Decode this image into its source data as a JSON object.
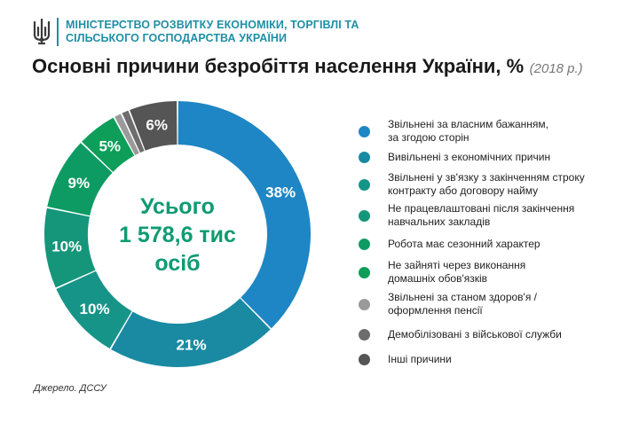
{
  "header": {
    "ministry_line1": "МІНІСТЕРСТВО РОЗВИТКУ ЕКОНОМІКИ, ТОРГІВЛІ ТА",
    "ministry_line2": "СІЛЬСЬКОГО ГОСПОДАРСТВА УКРАЇНИ",
    "emblem_icon": "trident-icon"
  },
  "chart_data": {
    "type": "pie",
    "title": "Основні причини безробіття населення України, %",
    "subtitle": "(2018 р.)",
    "center_text": [
      "Усього",
      "1 578,6 тис",
      "осіб"
    ],
    "value_suffix": "%",
    "legend_placement": "right",
    "slices": [
      {
        "label_lines": [
          "Звільнені за власним бажанням,",
          "за згодою сторін"
        ],
        "value": 38,
        "color": "#1e86c4",
        "shown": true
      },
      {
        "label_lines": [
          "Вивільнені з економічних причин"
        ],
        "value": 21,
        "color": "#1a8aa3",
        "shown": true
      },
      {
        "label_lines": [
          "Звільнені у зв'язку з закінченням строку",
          "контракту або договору найму"
        ],
        "value": 10,
        "color": "#179488",
        "shown": true
      },
      {
        "label_lines": [
          "Не працевлаштовані після закінчення",
          "навчальних закладів"
        ],
        "value": 10,
        "color": "#15967a",
        "shown": true
      },
      {
        "label_lines": [
          "Робота має сезонний характер"
        ],
        "value": 9,
        "color": "#0e9b63",
        "shown": true
      },
      {
        "label_lines": [
          "Не зайняті через виконання",
          "домашніх обов'язків"
        ],
        "value": 5,
        "color": "#0e9e5a",
        "shown": true
      },
      {
        "label_lines": [
          "Звільнені за станом здоров'я /",
          "оформлення пенсії"
        ],
        "value": 1,
        "color": "#9a9a9a",
        "shown": false
      },
      {
        "label_lines": [
          "Демобілізовані з військової служби"
        ],
        "value": 1,
        "color": "#6d6d6d",
        "shown": false
      },
      {
        "label_lines": [
          "Інші причини"
        ],
        "value": 6,
        "color": "#555555",
        "shown": true
      }
    ]
  },
  "source": "Джерело. ДССУ"
}
